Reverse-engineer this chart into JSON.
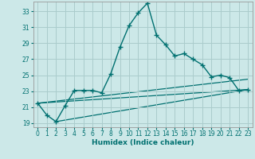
{
  "title": "",
  "xlabel": "Humidex (Indice chaleur)",
  "ylabel": "",
  "background_color": "#cce8e8",
  "grid_color": "#aacccc",
  "line_color": "#007070",
  "xlim": [
    -0.5,
    23.5
  ],
  "ylim": [
    18.5,
    34.2
  ],
  "xticks": [
    0,
    1,
    2,
    3,
    4,
    5,
    6,
    7,
    8,
    9,
    10,
    11,
    12,
    13,
    14,
    15,
    16,
    17,
    18,
    19,
    20,
    21,
    22,
    23
  ],
  "yticks": [
    19,
    21,
    23,
    25,
    27,
    29,
    31,
    33
  ],
  "main_x": [
    0,
    1,
    2,
    3,
    4,
    5,
    6,
    7,
    8,
    9,
    10,
    11,
    12,
    13,
    14,
    15,
    16,
    17,
    18,
    19,
    20,
    21,
    22,
    23
  ],
  "main_y": [
    21.5,
    20.0,
    19.2,
    21.2,
    23.1,
    23.1,
    23.1,
    22.8,
    25.2,
    28.5,
    31.2,
    32.8,
    34.0,
    30.0,
    28.8,
    27.4,
    27.7,
    27.0,
    26.3,
    24.8,
    25.0,
    24.7,
    23.1,
    23.2
  ],
  "trend1_x": [
    0,
    23
  ],
  "trend1_y": [
    21.5,
    24.5
  ],
  "trend2_x": [
    0,
    23
  ],
  "trend2_y": [
    21.5,
    23.2
  ],
  "trend3_x": [
    2,
    23
  ],
  "trend3_y": [
    19.2,
    23.2
  ]
}
